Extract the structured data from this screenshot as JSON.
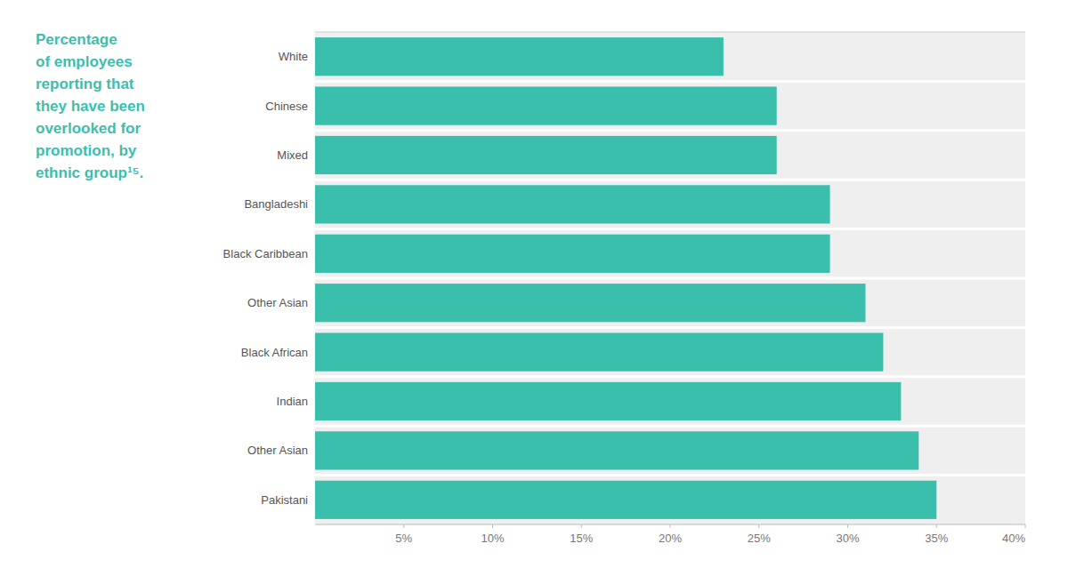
{
  "chart_data": {
    "type": "bar",
    "orientation": "horizontal",
    "title": "Percentage\nof employees\nreporting that\nthey have been\noverlooked for\npromotion, by\nethnic group¹⁵.",
    "categories": [
      "White",
      "Chinese",
      "Mixed",
      "Bangladeshi",
      "Black Caribbean",
      "Other Asian",
      "Black African",
      "Indian",
      "Other Asian",
      "Pakistani"
    ],
    "values": [
      23.0,
      26.0,
      26.0,
      29.0,
      29.0,
      31.0,
      32.0,
      33.0,
      34.0,
      35.0
    ],
    "color": "#3bbfad",
    "xlim": [
      0,
      40
    ],
    "xticks": [
      {
        "value": 5,
        "label": "5%"
      },
      {
        "value": 10,
        "label": "10%"
      },
      {
        "value": 15,
        "label": "15%"
      },
      {
        "value": 20,
        "label": "20%"
      },
      {
        "value": 25,
        "label": "25%"
      },
      {
        "value": 30,
        "label": "30%"
      },
      {
        "value": 35,
        "label": "35%"
      },
      {
        "value": 40,
        "label": "40%"
      }
    ],
    "grid": false
  }
}
